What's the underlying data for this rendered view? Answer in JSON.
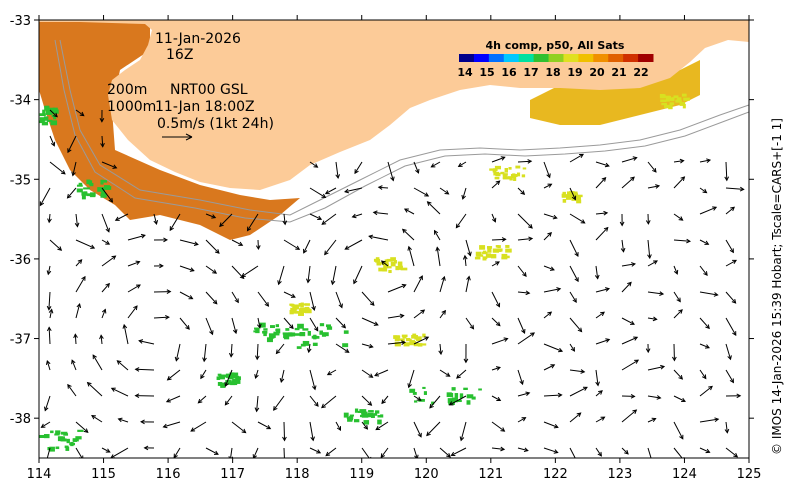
{
  "map": {
    "lon_ticks": [
      "114",
      "115",
      "116",
      "117",
      "118",
      "119",
      "120",
      "121",
      "122",
      "123",
      "124",
      "125"
    ],
    "lat_ticks": [
      "-33",
      "-34",
      "-35",
      "-36",
      "-37",
      "-38"
    ],
    "lon_range": [
      114,
      125
    ],
    "lat_range": [
      -38.5,
      -33
    ]
  },
  "annotations": {
    "date": "11-Jan-2026",
    "hour": "16Z",
    "contour_200": "200m",
    "product": "NRT00 GSL",
    "contour_1000": "1000m",
    "vector_time": "11-Jan 18:00Z",
    "velocity_scale": "0.5m/s (1kt 24h)"
  },
  "colorbar": {
    "title": "4h comp, p50, All Sats",
    "ticks": [
      "14",
      "15",
      "16",
      "17",
      "18",
      "19",
      "20",
      "21",
      "22"
    ],
    "colors": [
      "#00008b",
      "#0000ff",
      "#0070ff",
      "#00c8ff",
      "#00e0a0",
      "#30c030",
      "#90d020",
      "#e0e020",
      "#f0c000",
      "#f09000",
      "#e06000",
      "#d03000",
      "#a00000"
    ]
  },
  "colors": {
    "land": "#fccb98",
    "coast_sst": "#d9781e",
    "green_patch": "#28c030",
    "yellow_patch": "#d8e020"
  },
  "credit": "© IMOS 14-Jan-2026 15:39 Hobart; Tscale=CARS+[-1 1]"
}
